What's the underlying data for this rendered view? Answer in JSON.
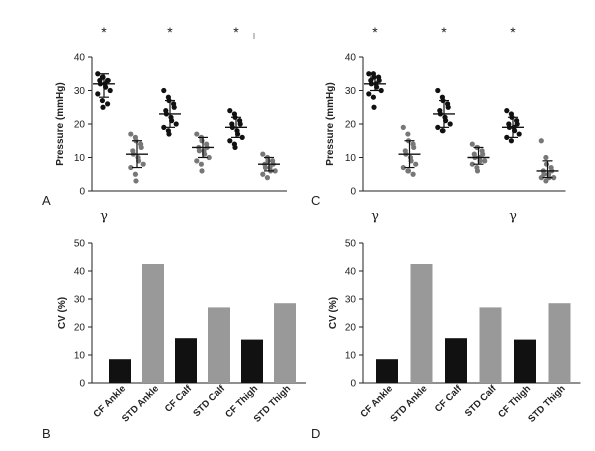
{
  "colors": {
    "cf": "#111111",
    "std": "#999999",
    "std_dot": "#777777",
    "axis": "#222222"
  },
  "chart_data": [
    {
      "panel": "A",
      "type": "scatter",
      "ylabel": "Pressure (mmHg)",
      "ylim": [
        0,
        40
      ],
      "yticks": [
        0,
        10,
        20,
        30,
        40
      ],
      "series": [
        {
          "group": "cf",
          "center": 32,
          "sd_low": 28,
          "sd_high": 35,
          "values": [
            35,
            34,
            34,
            33,
            33,
            33,
            32,
            32,
            31,
            30,
            29,
            27,
            25,
            26
          ]
        },
        {
          "group": "std",
          "center": 11,
          "sd_low": 7,
          "sd_high": 15,
          "values": [
            17,
            16,
            15,
            14,
            13,
            12,
            11,
            10,
            9,
            8,
            7,
            5,
            3
          ]
        },
        {
          "group": "cf",
          "center": 23,
          "sd_low": 19,
          "sd_high": 27,
          "values": [
            30,
            28,
            27,
            26,
            25,
            24,
            23,
            22,
            21,
            20,
            19,
            18,
            17
          ]
        },
        {
          "group": "std",
          "center": 13,
          "sd_low": 10,
          "sd_high": 16,
          "values": [
            17,
            16,
            15,
            14,
            13,
            13,
            12,
            12,
            11,
            10,
            9,
            8,
            6
          ]
        },
        {
          "group": "cf",
          "center": 19,
          "sd_low": 16,
          "sd_high": 22,
          "values": [
            24,
            23,
            22,
            21,
            20,
            20,
            19,
            18,
            17,
            16,
            15,
            14,
            13
          ]
        },
        {
          "group": "std",
          "center": 8,
          "sd_low": 6,
          "sd_high": 10,
          "values": [
            11,
            10,
            9,
            9,
            8,
            8,
            7,
            7,
            6,
            6,
            5,
            4
          ]
        }
      ],
      "annotations": [
        {
          "text": "*",
          "pos": "above",
          "x_index": 0
        },
        {
          "text": "*",
          "pos": "above",
          "x_index": 2
        },
        {
          "text": "*",
          "pos": "above",
          "x_index": 4
        },
        {
          "text": "γ",
          "pos": "below",
          "x_index": 0
        }
      ]
    },
    {
      "panel": "C",
      "type": "scatter",
      "ylabel": "Pressure (mmHg)",
      "ylim": [
        0,
        40
      ],
      "yticks": [
        0,
        10,
        20,
        30,
        40
      ],
      "series": [
        {
          "group": "cf",
          "center": 32,
          "sd_low": 30,
          "sd_high": 34,
          "values": [
            35,
            35,
            34,
            34,
            33,
            33,
            32,
            32,
            31,
            30,
            29,
            28,
            25
          ]
        },
        {
          "group": "std",
          "center": 11,
          "sd_low": 7,
          "sd_high": 15,
          "values": [
            19,
            17,
            15,
            14,
            13,
            12,
            11,
            10,
            9,
            8,
            7,
            6,
            6,
            5
          ]
        },
        {
          "group": "cf",
          "center": 23,
          "sd_low": 19,
          "sd_high": 27,
          "values": [
            30,
            28,
            27,
            26,
            25,
            24,
            23,
            22,
            21,
            20,
            19,
            18,
            18
          ]
        },
        {
          "group": "std",
          "center": 10,
          "sd_low": 8,
          "sd_high": 13,
          "values": [
            14,
            13,
            13,
            12,
            11,
            11,
            10,
            10,
            9,
            9,
            8,
            7,
            6
          ]
        },
        {
          "group": "cf",
          "center": 19,
          "sd_low": 16,
          "sd_high": 22,
          "values": [
            24,
            23,
            22,
            21,
            20,
            20,
            19,
            19,
            18,
            17,
            16,
            15
          ]
        },
        {
          "group": "std",
          "center": 6,
          "sd_low": 4,
          "sd_high": 9,
          "values": [
            15,
            10,
            8,
            7,
            6,
            6,
            5,
            5,
            4,
            4,
            4,
            3
          ]
        }
      ],
      "annotations": [
        {
          "text": "*",
          "pos": "above",
          "x_index": 0
        },
        {
          "text": "*",
          "pos": "above",
          "x_index": 2
        },
        {
          "text": "*",
          "pos": "above",
          "x_index": 4
        },
        {
          "text": "γ",
          "pos": "below",
          "x_index": 0
        },
        {
          "text": "γ",
          "pos": "below",
          "x_index": 4
        }
      ]
    },
    {
      "panel": "B",
      "type": "bar",
      "ylabel": "CV (%)",
      "ylim": [
        0,
        50
      ],
      "yticks": [
        0,
        10,
        20,
        30,
        40,
        50
      ],
      "categories": [
        "CF Ankle",
        "STD Ankle",
        "CF Calf",
        "STD Calf",
        "CF Thigh",
        "STD Thigh"
      ],
      "groups": [
        "cf",
        "std",
        "cf",
        "std",
        "cf",
        "std"
      ],
      "values": [
        8.5,
        42.5,
        16,
        27,
        15.5,
        28.5
      ]
    },
    {
      "panel": "D",
      "type": "bar",
      "ylabel": "CV (%)",
      "ylim": [
        0,
        50
      ],
      "yticks": [
        0,
        10,
        20,
        30,
        40,
        50
      ],
      "categories": [
        "CF Ankle",
        "STD Ankle",
        "CF Calf",
        "STD Calf",
        "CF Thigh",
        "STD Thigh"
      ],
      "groups": [
        "cf",
        "std",
        "cf",
        "std",
        "cf",
        "std"
      ],
      "values": [
        8.5,
        42.5,
        16,
        27,
        15.5,
        28.5
      ]
    }
  ]
}
